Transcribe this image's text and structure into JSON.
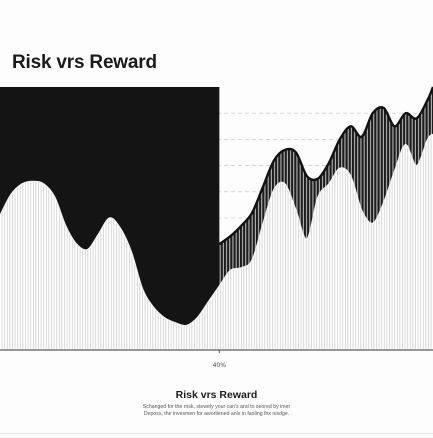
{
  "chart_data": {
    "type": "area",
    "title": "Risk vrs Reward",
    "xlabel": "",
    "ylabel": "",
    "x_ticks": [
      {
        "x": 40,
        "label": "40%"
      }
    ],
    "xlim": [
      0,
      79
    ],
    "ylim": [
      0,
      100
    ],
    "grid": true,
    "series": [
      {
        "role": "upper",
        "x": [
          0,
          2,
          4,
          6,
          8,
          10,
          12,
          14,
          16,
          18,
          20,
          22,
          24,
          26,
          28,
          30,
          32,
          34,
          36,
          38,
          40,
          42,
          44,
          46,
          48,
          50,
          52,
          54,
          56,
          58,
          60,
          62,
          64,
          66,
          68,
          70,
          72,
          74,
          76,
          78,
          79
        ],
        "values": [
          100,
          100,
          100,
          100,
          100,
          100,
          100,
          100,
          100,
          100,
          100,
          100,
          100,
          100,
          100,
          100,
          100,
          100,
          100,
          100,
          40,
          43,
          47,
          52,
          62,
          72,
          76,
          75,
          66,
          65,
          71,
          80,
          85,
          81,
          90,
          92,
          85,
          90,
          88,
          95,
          100
        ]
      },
      {
        "role": "lower",
        "x": [
          0,
          2,
          4,
          6,
          8,
          10,
          12,
          14,
          16,
          18,
          20,
          22,
          24,
          26,
          28,
          30,
          32,
          34,
          36,
          38,
          40,
          42,
          44,
          46,
          48,
          50,
          52,
          54,
          56,
          58,
          60,
          62,
          64,
          66,
          68,
          70,
          72,
          74,
          76,
          78,
          79
        ],
        "values": [
          51,
          59,
          63,
          64,
          63,
          58,
          47,
          40,
          38,
          44,
          50,
          46,
          37,
          23,
          16,
          12,
          10,
          9,
          12,
          18,
          24,
          30,
          31,
          34,
          48,
          61,
          63,
          53,
          42,
          58,
          63,
          69,
          66,
          53,
          48,
          56,
          68,
          78,
          70,
          80,
          82
        ]
      }
    ]
  },
  "caption": {
    "title": "Risk vrs Reward",
    "text_line1": "Schanged for the rrisk, stewely your can's and to seored by imer",
    "text_line2": "Deposs, the invesmen for awortiened anls in faoling fnx nisdge."
  }
}
